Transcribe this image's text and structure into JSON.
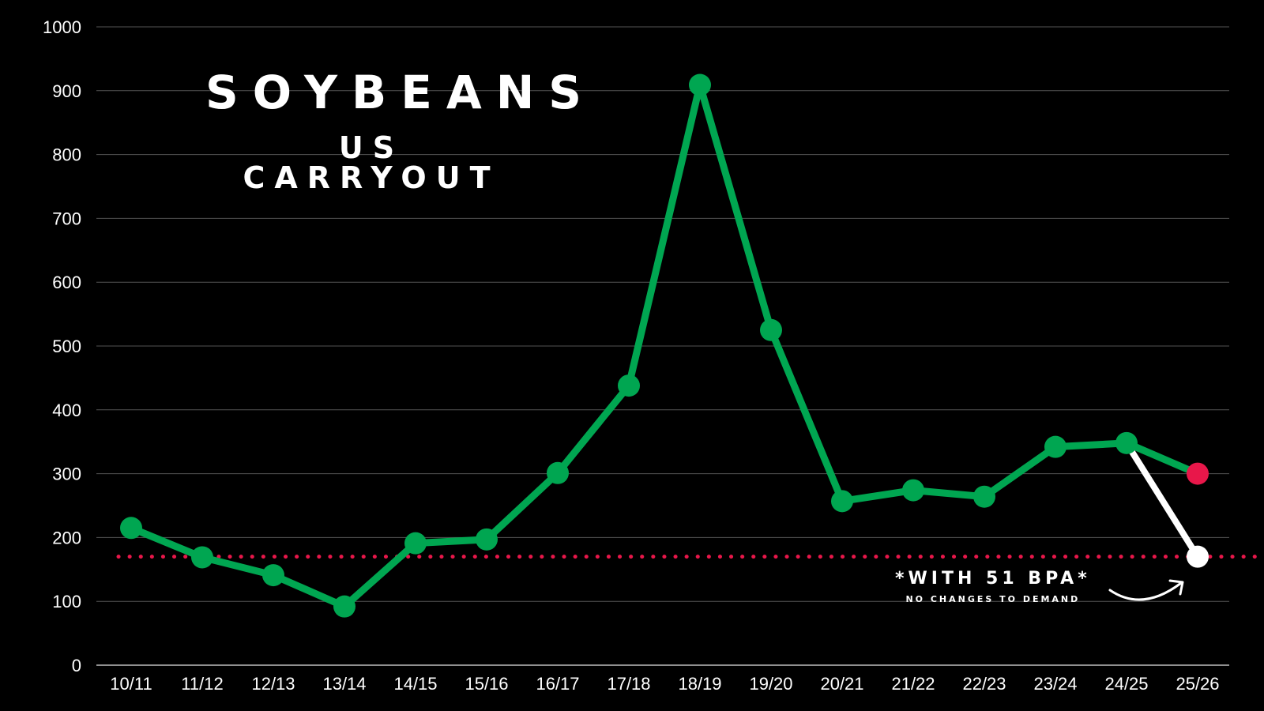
{
  "chart_data": {
    "type": "line",
    "title": "SOYBEANS",
    "subtitle": "US CARRYOUT",
    "categories": [
      "10/11",
      "11/12",
      "12/13",
      "13/14",
      "14/15",
      "15/16",
      "16/17",
      "17/18",
      "18/19",
      "19/20",
      "20/21",
      "21/22",
      "22/23",
      "23/24",
      "24/25",
      "25/26"
    ],
    "series": [
      {
        "values": [
          215,
          169,
          141,
          92,
          191,
          197,
          301,
          438,
          909,
          525,
          257,
          274,
          264,
          342,
          348,
          300
        ],
        "color": "#00a651",
        "last_point_color": "#e8174a"
      },
      {
        "x": [
          "24/25",
          "25/26"
        ],
        "values": [
          348,
          170
        ],
        "color": "#ffffff"
      }
    ],
    "reference_line": {
      "value": 170,
      "color": "#e8174a",
      "style": "dotted"
    },
    "ylim": [
      0,
      1000
    ],
    "yticks": [
      0,
      100,
      200,
      300,
      400,
      500,
      600,
      700,
      800,
      900,
      1000
    ],
    "grid": true,
    "background": "#000000",
    "annotation": {
      "text": "*WITH 51 BPA*",
      "subtext": "NO CHANGES TO DEMAND",
      "target": "25/26",
      "arrow": "curved-arrow-icon"
    }
  }
}
